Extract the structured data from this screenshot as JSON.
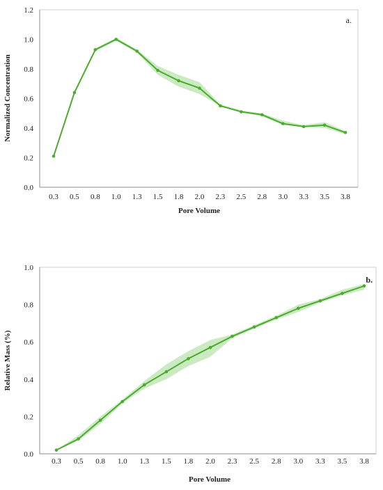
{
  "colors": {
    "line": "#4aab2e",
    "band": "#b9e3ac"
  },
  "chart_data": [
    {
      "type": "line",
      "panel_label": "a.",
      "xlabel": "Pore Volume",
      "ylabel": "Normalized Concentration",
      "ylim": [
        0,
        1.2
      ],
      "yticks": [
        "0.0",
        "0.2",
        "0.4",
        "0.6",
        "0.8",
        "1.0",
        "1.2"
      ],
      "categories": [
        "0.3",
        "0.5",
        "0.8",
        "1.0",
        "1.3",
        "1.5",
        "1.8",
        "2.0",
        "2.3",
        "2.5",
        "2.8",
        "3.0",
        "3.3",
        "3.5",
        "3.8"
      ],
      "x": [
        0.3,
        0.55,
        0.8,
        1.05,
        1.3,
        1.55,
        1.8,
        2.05,
        2.3,
        2.55,
        2.8,
        3.05,
        3.3,
        3.55,
        3.8
      ],
      "series": [
        {
          "values": [
            0.21,
            0.64,
            0.93,
            1.0,
            0.92,
            0.79,
            0.72,
            0.67,
            0.55,
            0.51,
            0.49,
            0.43,
            0.41,
            0.42,
            0.37
          ],
          "lower": [
            0.21,
            0.64,
            0.92,
            0.99,
            0.91,
            0.76,
            0.68,
            0.63,
            0.55,
            0.51,
            0.48,
            0.42,
            0.41,
            0.4,
            0.36
          ],
          "upper": [
            0.21,
            0.64,
            0.94,
            1.01,
            0.93,
            0.82,
            0.76,
            0.71,
            0.56,
            0.52,
            0.5,
            0.45,
            0.42,
            0.44,
            0.38
          ]
        }
      ],
      "grid": false
    },
    {
      "type": "line",
      "panel_label": "b.",
      "xlabel": "Pore Volume",
      "ylabel": "Relative Mass (%)",
      "ylim": [
        0,
        1.0
      ],
      "yticks": [
        "0.0",
        "0.2",
        "0.4",
        "0.6",
        "0.8",
        "1.0"
      ],
      "categories": [
        "0.3",
        "0.5",
        "0.8",
        "1.0",
        "1.3",
        "1.5",
        "1.8",
        "2.0",
        "2.3",
        "2.5",
        "2.8",
        "3.0",
        "3.3",
        "3.5",
        "3.8"
      ],
      "x": [
        0.3,
        0.55,
        0.8,
        1.05,
        1.3,
        1.55,
        1.8,
        2.05,
        2.3,
        2.55,
        2.8,
        3.05,
        3.3,
        3.55,
        3.8
      ],
      "series": [
        {
          "values": [
            0.02,
            0.08,
            0.18,
            0.28,
            0.37,
            0.44,
            0.51,
            0.57,
            0.63,
            0.68,
            0.73,
            0.78,
            0.82,
            0.86,
            0.9
          ],
          "lower": [
            0.02,
            0.07,
            0.16,
            0.27,
            0.35,
            0.4,
            0.47,
            0.52,
            0.62,
            0.67,
            0.72,
            0.76,
            0.81,
            0.85,
            0.88
          ],
          "upper": [
            0.02,
            0.1,
            0.2,
            0.29,
            0.39,
            0.48,
            0.55,
            0.61,
            0.64,
            0.69,
            0.74,
            0.8,
            0.83,
            0.88,
            0.91
          ]
        }
      ],
      "grid": false
    }
  ]
}
